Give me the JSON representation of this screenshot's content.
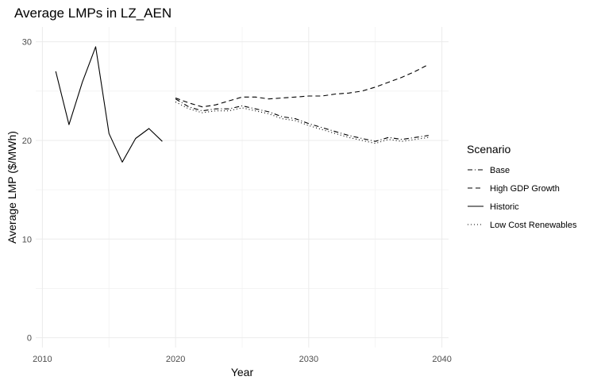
{
  "chart_data": {
    "type": "line",
    "title": "Average LMPs in LZ_AEN",
    "xlabel": "Year",
    "ylabel": "Average LMP ($/MWh)",
    "xlim": [
      2009.5,
      2040.5
    ],
    "ylim": [
      -1,
      31.5
    ],
    "xticks": [
      2010,
      2020,
      2030,
      2040
    ],
    "yticks": [
      0,
      10,
      20,
      30
    ],
    "grid": true,
    "legend": {
      "title": "Scenario",
      "position": "right"
    },
    "series": [
      {
        "name": "Base",
        "dash": "dashdot",
        "x": [
          2020,
          2021,
          2022,
          2023,
          2024,
          2025,
          2026,
          2027,
          2028,
          2029,
          2030,
          2031,
          2032,
          2033,
          2034,
          2035,
          2036,
          2037,
          2038,
          2039
        ],
        "y": [
          24.2,
          23.4,
          23.0,
          23.2,
          23.2,
          23.5,
          23.2,
          22.9,
          22.4,
          22.2,
          21.7,
          21.3,
          20.9,
          20.5,
          20.2,
          19.9,
          20.3,
          20.1,
          20.3,
          20.5
        ]
      },
      {
        "name": "High GDP Growth",
        "dash": "dashed",
        "x": [
          2020,
          2021,
          2022,
          2023,
          2024,
          2025,
          2026,
          2027,
          2028,
          2029,
          2030,
          2031,
          2032,
          2033,
          2034,
          2035,
          2036,
          2037,
          2038,
          2039
        ],
        "y": [
          24.3,
          23.8,
          23.4,
          23.6,
          24.0,
          24.4,
          24.4,
          24.2,
          24.3,
          24.4,
          24.5,
          24.5,
          24.7,
          24.8,
          25.0,
          25.4,
          25.9,
          26.4,
          27.0,
          27.7
        ]
      },
      {
        "name": "Historic",
        "dash": "solid",
        "x": [
          2011,
          2012,
          2013,
          2014,
          2015,
          2016,
          2017,
          2018,
          2019
        ],
        "y": [
          27.0,
          21.6,
          25.9,
          29.5,
          20.7,
          17.8,
          20.2,
          21.2,
          19.9
        ]
      },
      {
        "name": "Low Cost Renewables",
        "dash": "dotted",
        "x": [
          2020,
          2021,
          2022,
          2023,
          2024,
          2025,
          2026,
          2027,
          2028,
          2029,
          2030,
          2031,
          2032,
          2033,
          2034,
          2035,
          2036,
          2037,
          2038,
          2039
        ],
        "y": [
          23.9,
          23.2,
          22.8,
          23.0,
          23.0,
          23.3,
          23.0,
          22.7,
          22.2,
          22.0,
          21.5,
          21.1,
          20.7,
          20.3,
          20.0,
          19.7,
          20.1,
          19.9,
          20.1,
          20.3
        ]
      }
    ]
  }
}
